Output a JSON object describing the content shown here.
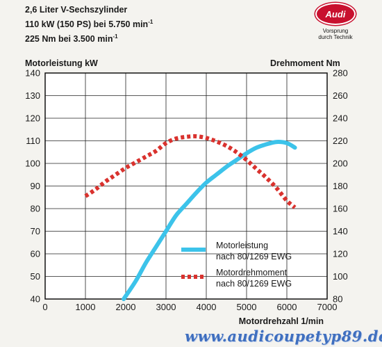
{
  "header": {
    "line1": "2,6 Liter V-Sechszylinder",
    "line2": "110 kW (150 PS) bei 5.750 min",
    "line2_sup": "-1",
    "line3": "225 Nm bei 3.500 min",
    "line3_sup": "-1"
  },
  "logo": {
    "brand": "Audi",
    "slogan_line1": "Vorsprung",
    "slogan_line2": "durch Technik",
    "color": "#c8102e"
  },
  "watermark": "www.audicoupetyp89.de",
  "chart_data": {
    "type": "line",
    "title": "",
    "xlabel": "Motordrehzahl 1/min",
    "ylabel": "Motorleistung kW",
    "y2label": "Drehmoment Nm",
    "xlim": [
      0,
      7000
    ],
    "ylim": [
      40,
      140
    ],
    "y2lim": [
      80,
      280
    ],
    "xticks": [
      0,
      1000,
      2000,
      3000,
      4000,
      5000,
      6000,
      7000
    ],
    "yticks": [
      40,
      50,
      60,
      70,
      80,
      90,
      100,
      110,
      120,
      130,
      140
    ],
    "y2ticks": [
      80,
      100,
      120,
      140,
      160,
      180,
      200,
      220,
      240,
      260,
      280
    ],
    "grid": true,
    "legend_position": "bottom-right",
    "series": [
      {
        "name": "Motorleistung nach 80/1269 EWG",
        "axis": "left",
        "style": "solid",
        "color": "#3cc3ea",
        "x": [
          1950,
          2250,
          2500,
          2750,
          3000,
          3250,
          3500,
          3750,
          4000,
          4250,
          4500,
          4750,
          5000,
          5250,
          5500,
          5750,
          6000,
          6200
        ],
        "y": [
          40,
          48,
          56,
          63,
          70,
          77,
          82,
          87,
          91.5,
          95,
          98.5,
          101.5,
          104.5,
          107,
          108.5,
          109.5,
          109,
          107
        ]
      },
      {
        "name": "Motordrehmoment nach 80/1269 EWG",
        "axis": "right",
        "style": "dotted",
        "color": "#d9322e",
        "x": [
          1000,
          1250,
          1500,
          1750,
          2000,
          2250,
          2500,
          2750,
          3000,
          3250,
          3500,
          3750,
          4000,
          4250,
          4500,
          4750,
          5000,
          5250,
          5500,
          5750,
          6000,
          6200
        ],
        "y": [
          171,
          177,
          184,
          190,
          196,
          201,
          206,
          211,
          218,
          222,
          223.5,
          224,
          222.5,
          219.5,
          215.5,
          210,
          203,
          195,
          187,
          178,
          167,
          161
        ]
      }
    ]
  }
}
